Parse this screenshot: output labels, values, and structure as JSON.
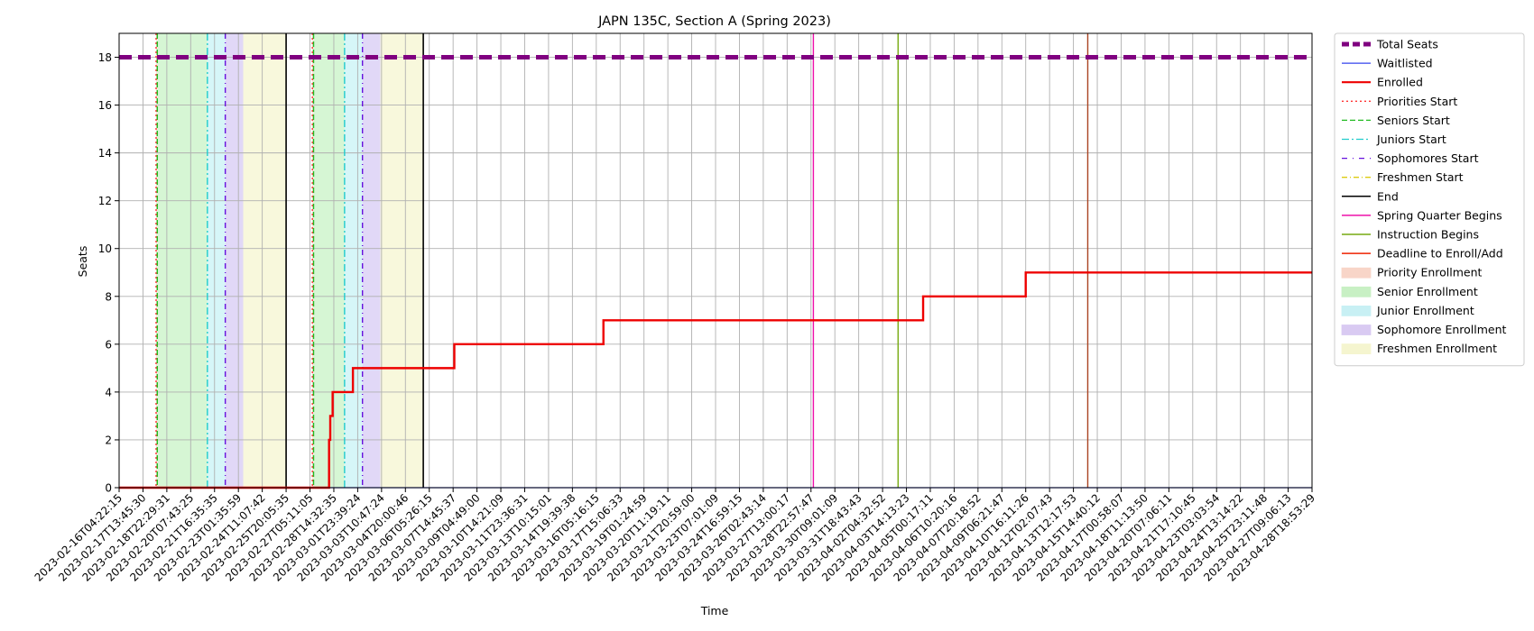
{
  "chart_data": {
    "type": "line",
    "title": "JAPN 135C, Section A (Spring 2023)",
    "xlabel": "Time",
    "ylabel": "Seats",
    "ylim": [
      0,
      19
    ],
    "yticks": [
      0,
      2,
      4,
      6,
      8,
      10,
      12,
      14,
      16,
      18
    ],
    "grid": true,
    "legend_position": "outside-right",
    "xticks": [
      "2023-02-16T04:22:15",
      "2023-02-17T13:45:30",
      "2023-02-18T22:29:31",
      "2023-02-20T07:43:25",
      "2023-02-21T16:35:35",
      "2023-02-23T01:35:59",
      "2023-02-24T11:07:42",
      "2023-02-25T20:05:35",
      "2023-02-27T05:11:05",
      "2023-02-28T14:32:35",
      "2023-03-01T23:39:24",
      "2023-03-03T10:47:24",
      "2023-03-04T20:00:46",
      "2023-03-06T05:26:15",
      "2023-03-07T14:45:37",
      "2023-03-09T04:49:00",
      "2023-03-10T14:21:09",
      "2023-03-11T23:36:31",
      "2023-03-13T10:15:01",
      "2023-03-14T19:39:38",
      "2023-03-16T05:16:15",
      "2023-03-17T15:06:33",
      "2023-03-19T01:24:59",
      "2023-03-20T11:19:11",
      "2023-03-21T20:59:00",
      "2023-03-23T07:01:09",
      "2023-03-24T16:59:15",
      "2023-03-26T02:43:14",
      "2023-03-27T13:00:17",
      "2023-03-28T22:57:47",
      "2023-03-30T09:01:09",
      "2023-03-31T18:43:43",
      "2023-04-02T04:32:52",
      "2023-04-03T14:13:23",
      "2023-04-05T00:17:11",
      "2023-04-06T10:20:16",
      "2023-04-07T20:18:52",
      "2023-04-09T06:21:47",
      "2023-04-10T16:11:26",
      "2023-04-12T02:07:43",
      "2023-04-13T12:17:53",
      "2023-04-15T14:40:12",
      "2023-04-17T00:58:07",
      "2023-04-18T11:13:50",
      "2023-04-20T07:06:11",
      "2023-04-21T17:10:45",
      "2023-04-23T03:03:54",
      "2023-04-24T13:14:22",
      "2023-04-25T23:11:48",
      "2023-04-27T09:06:13",
      "2023-04-28T18:53:29"
    ],
    "total_seats": 18,
    "enrolled_steps": [
      {
        "x": 0,
        "y": 0
      },
      {
        "x": 8.8,
        "y": 0
      },
      {
        "x": 8.8,
        "y": 2
      },
      {
        "x": 8.85,
        "y": 3
      },
      {
        "x": 8.95,
        "y": 4
      },
      {
        "x": 9.8,
        "y": 5
      },
      {
        "x": 14.05,
        "y": 6
      },
      {
        "x": 20.3,
        "y": 7
      },
      {
        "x": 33.7,
        "y": 8
      },
      {
        "x": 38.0,
        "y": 9
      },
      {
        "x": 50.0,
        "y": 9
      }
    ],
    "waitlisted_value": 0,
    "periods": [
      {
        "name": "Priority Enrollment",
        "color": "#f4c6b4",
        "start": 1.55,
        "end": 1.6
      },
      {
        "name": "Senior Enrollment",
        "color": "#b4eeb0",
        "start": 1.6,
        "end": 3.7
      },
      {
        "name": "Junior Enrollment",
        "color": "#b4eef2",
        "start": 3.7,
        "end": 4.45
      },
      {
        "name": "Sophomore Enrollment",
        "color": "#c9b8f0",
        "start": 4.45,
        "end": 5.2
      },
      {
        "name": "Freshmen Enrollment",
        "color": "#f2f2c0",
        "start": 5.2,
        "end": 7.0
      },
      {
        "name": "Priority Enrollment",
        "color": "#f4c6b4",
        "start": 8.1,
        "end": 8.15
      },
      {
        "name": "Senior Enrollment",
        "color": "#b4eeb0",
        "start": 8.15,
        "end": 9.45
      },
      {
        "name": "Junior Enrollment",
        "color": "#b4eef2",
        "start": 9.45,
        "end": 10.2
      },
      {
        "name": "Sophomore Enrollment",
        "color": "#c9b8f0",
        "start": 10.2,
        "end": 10.95
      },
      {
        "name": "Freshmen Enrollment",
        "color": "#f2f2c0",
        "start": 10.95,
        "end": 12.75
      }
    ],
    "markers": [
      {
        "name": "Priorities Start",
        "x": 1.55,
        "color": "#ff3333",
        "dash": "2,3"
      },
      {
        "name": "Seniors Start",
        "x": 1.6,
        "color": "#22bb22",
        "dash": "6,3"
      },
      {
        "name": "Juniors Start",
        "x": 3.7,
        "color": "#22cccc",
        "dash": "8,3,2,3"
      },
      {
        "name": "Sophomores Start",
        "x": 4.45,
        "color": "#6611dd",
        "dash": "6,4,1,4"
      },
      {
        "name": "End",
        "x": 7.0,
        "color": "#000000",
        "dash": ""
      },
      {
        "name": "Priorities Start",
        "x": 8.1,
        "color": "#ff3333",
        "dash": "2,3"
      },
      {
        "name": "Seniors Start",
        "x": 8.15,
        "color": "#22bb22",
        "dash": "6,3"
      },
      {
        "name": "Juniors Start",
        "x": 9.45,
        "color": "#22cccc",
        "dash": "8,3,2,3"
      },
      {
        "name": "Sophomores Start",
        "x": 10.2,
        "color": "#6611dd",
        "dash": "6,4,1,4"
      },
      {
        "name": "End",
        "x": 12.75,
        "color": "#000000",
        "dash": ""
      },
      {
        "name": "Spring Quarter Begins",
        "x": 29.1,
        "color": "#ee11aa",
        "dash": ""
      },
      {
        "name": "Instruction Begins",
        "x": 32.65,
        "color": "#77aa11",
        "dash": ""
      },
      {
        "name": "Deadline to Enroll/Add",
        "x": 40.6,
        "color": "#aa4422",
        "dash": ""
      }
    ],
    "legend": [
      {
        "label": "Total Seats",
        "kind": "line",
        "color": "#800080",
        "width": 5,
        "dash": "8,4"
      },
      {
        "label": "Waitlisted",
        "kind": "line",
        "color": "#3344ee",
        "width": 1.2,
        "dash": ""
      },
      {
        "label": "Enrolled",
        "kind": "line",
        "color": "#ee0000",
        "width": 2.2,
        "dash": ""
      },
      {
        "label": "Priorities Start",
        "kind": "line",
        "color": "#ff3333",
        "width": 1.3,
        "dash": "2,3"
      },
      {
        "label": "Seniors Start",
        "kind": "line",
        "color": "#22bb22",
        "width": 1.3,
        "dash": "6,3"
      },
      {
        "label": "Juniors Start",
        "kind": "line",
        "color": "#22cccc",
        "width": 1.3,
        "dash": "8,3,2,3"
      },
      {
        "label": "Sophomores Start",
        "kind": "line",
        "color": "#6611dd",
        "width": 1.3,
        "dash": "6,6,1,6"
      },
      {
        "label": "Freshmen Start",
        "kind": "line",
        "color": "#ddcc11",
        "width": 1.3,
        "dash": "6,3,1,3"
      },
      {
        "label": "End",
        "kind": "line",
        "color": "#000000",
        "width": 1.5,
        "dash": ""
      },
      {
        "label": "Spring Quarter Begins",
        "kind": "line",
        "color": "#ee11aa",
        "width": 1.5,
        "dash": ""
      },
      {
        "label": "Instruction Begins",
        "kind": "line",
        "color": "#77aa11",
        "width": 1.5,
        "dash": ""
      },
      {
        "label": "Deadline to Enroll/Add",
        "kind": "line",
        "color": "#ee2200",
        "width": 1.5,
        "dash": ""
      },
      {
        "label": "Priority Enrollment",
        "kind": "patch",
        "color": "#f8d5c8"
      },
      {
        "label": "Senior Enrollment",
        "kind": "patch",
        "color": "#c8f0c4"
      },
      {
        "label": "Junior Enrollment",
        "kind": "patch",
        "color": "#c8f0f4"
      },
      {
        "label": "Sophomore Enrollment",
        "kind": "patch",
        "color": "#d9caf2"
      },
      {
        "label": "Freshmen Enrollment",
        "kind": "patch",
        "color": "#f5f5cf"
      }
    ]
  }
}
